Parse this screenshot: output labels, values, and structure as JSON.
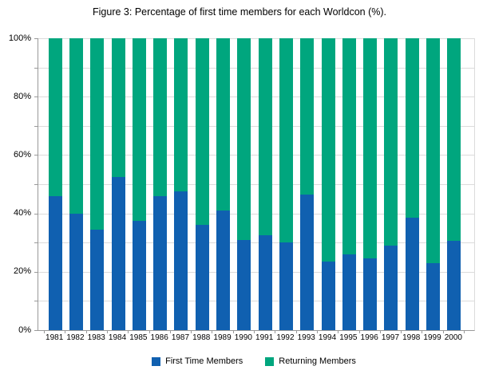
{
  "title": "Figure 3: Percentage of first time members for each Worldcon (%).",
  "legend": {
    "items": [
      {
        "label": "First Time Members",
        "color": "#1060B0"
      },
      {
        "label": "Returning Members",
        "color": "#00A67E"
      }
    ]
  },
  "y_axis": {
    "labeled_ticks": [
      {
        "value": 0,
        "label": "0%"
      },
      {
        "value": 20,
        "label": "20%"
      },
      {
        "value": 40,
        "label": "40%"
      },
      {
        "value": 60,
        "label": "60%"
      },
      {
        "value": 80,
        "label": "80%"
      },
      {
        "value": 100,
        "label": "100%"
      }
    ],
    "minor_tick_step": 10
  },
  "chart_data": {
    "type": "bar",
    "stacked": true,
    "title": "Figure 3: Percentage of first time members for each Worldcon (%).",
    "categories": [
      "1981",
      "1982",
      "1983",
      "1984",
      "1985",
      "1986",
      "1987",
      "1988",
      "1989",
      "1990",
      "1991",
      "1992",
      "1993",
      "1994",
      "1995",
      "1996",
      "1997",
      "1998",
      "1999",
      "2000"
    ],
    "series": [
      {
        "name": "First Time Members",
        "color": "#1060B0",
        "values": [
          46,
          40,
          34.5,
          52.5,
          37.5,
          46,
          47.5,
          36,
          41,
          31,
          32.5,
          30,
          46.5,
          23.5,
          26,
          24.5,
          29,
          38.5,
          23,
          30.5
        ]
      },
      {
        "name": "Returning Members",
        "color": "#00A67E",
        "values": [
          54,
          60,
          65.5,
          47.5,
          62.5,
          54,
          52.5,
          64,
          59,
          69,
          67.5,
          70,
          53.5,
          76.5,
          74,
          75.5,
          71,
          61.5,
          77,
          69.5
        ]
      }
    ],
    "xlabel": "",
    "ylabel": "",
    "ylim": [
      0,
      100
    ],
    "ytick_format": "percent",
    "grid": "horizontal lines every 10%",
    "legend_position": "bottom"
  },
  "colors": {
    "first_time_blue": "#1060B0",
    "returning_green": "#00A67E",
    "gridline": "#DBDBDB",
    "axis": "#999999",
    "background": "#FFFFFF",
    "text": "#000000"
  }
}
